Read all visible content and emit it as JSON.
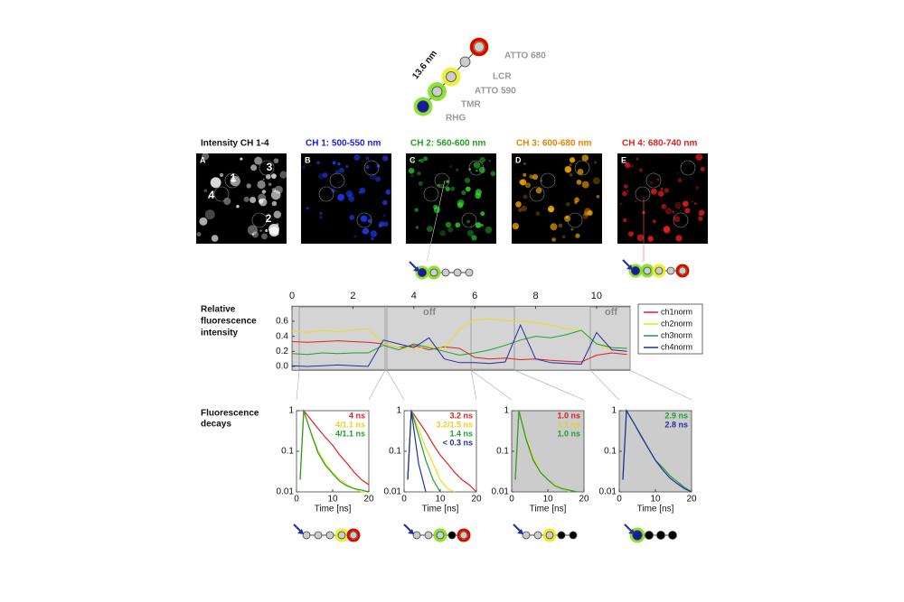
{
  "construct": {
    "length": "13.6 nm",
    "dyes": [
      "ATTO 680",
      "LCR",
      "ATTO 590",
      "TMR",
      "RHG"
    ]
  },
  "images": {
    "titles": [
      "Intensity CH 1-4",
      "CH 1: 500-550 nm",
      "CH 2: 560-600 nm",
      "CH 3: 600-680 nm",
      "CH 4: 680-740 nm"
    ],
    "letters": [
      "A",
      "B",
      "C",
      "D",
      "E"
    ],
    "spots": [
      "1",
      "2",
      "3",
      "4"
    ]
  },
  "trace": {
    "label": [
      "Relative",
      "fluorescence",
      "intensity"
    ],
    "annotations": [
      "off",
      "off"
    ],
    "xlim": [
      0,
      11.1
    ],
    "xticks": [
      0,
      2,
      4,
      6,
      8,
      10
    ],
    "ylim": [
      -0.05,
      0.8
    ],
    "yticks": [
      {
        "value": 0,
        "label": "0.0"
      },
      0.2,
      0.4,
      0.6
    ],
    "x": [
      0,
      0.5,
      1,
      1.5,
      2,
      2.5,
      3,
      3.5,
      4,
      4.5,
      5,
      5.5,
      6,
      6.5,
      7,
      7.5,
      8,
      8.5,
      9,
      9.5,
      10,
      10.5,
      11
    ],
    "series": [
      {
        "name": "ch1norm",
        "color": "#e02020",
        "values": [
          0.33,
          0.32,
          0.33,
          0.34,
          0.33,
          0.32,
          0.3,
          0.25,
          0.28,
          0.22,
          0.26,
          0.24,
          0.12,
          0.1,
          0.11,
          0.09,
          0.1,
          0.08,
          0.07,
          0.06,
          0.15,
          0.18,
          0.16
        ]
      },
      {
        "name": "ch2norm",
        "color": "#e8e020",
        "values": [
          0.47,
          0.45,
          0.48,
          0.46,
          0.49,
          0.5,
          0.3,
          0.25,
          0.22,
          0.28,
          0.24,
          0.5,
          0.62,
          0.63,
          0.61,
          0.6,
          0.58,
          0.55,
          0.5,
          0.48,
          0.3,
          0.22,
          0.2
        ]
      },
      {
        "name": "ch3norm",
        "color": "#20a030",
        "values": [
          0.17,
          0.16,
          0.18,
          0.17,
          0.18,
          0.18,
          0.28,
          0.22,
          0.3,
          0.25,
          0.2,
          0.15,
          0.18,
          0.22,
          0.28,
          0.35,
          0.4,
          0.38,
          0.42,
          0.48,
          0.3,
          0.25,
          0.24
        ]
      },
      {
        "name": "ch4norm",
        "color": "#2030a0",
        "values": [
          0.01,
          0.0,
          0.01,
          0.02,
          0.01,
          0.0,
          0.35,
          0.3,
          0.25,
          0.38,
          0.1,
          0.05,
          0.05,
          0.04,
          0.06,
          0.55,
          0.1,
          0.05,
          0.04,
          0.03,
          0.45,
          0.22,
          0.2
        ]
      }
    ]
  },
  "decays": {
    "label": [
      "Fluorescence",
      "decays"
    ],
    "x_label": "Time [ns]",
    "xlim": [
      0,
      20
    ],
    "xticks": [
      0,
      10,
      20
    ],
    "ylim": [
      0.01,
      1
    ],
    "yticks": [
      1,
      0.1,
      0.01
    ],
    "log_y": true,
    "x": [
      1,
      2,
      4,
      6,
      8,
      10,
      12,
      14,
      16,
      18,
      20
    ],
    "panels": [
      {
        "background": "#ffffff",
        "lifetimes": [
          {
            "text": "4 ns",
            "color": "#e02020"
          },
          {
            "text": "4/1.1 ns",
            "color": "#e8d020"
          },
          {
            "text": "4/1.1 ns",
            "color": "#20a030"
          }
        ],
        "series": [
          {
            "color": "#e02020",
            "values": [
              0.02,
              1,
              0.6,
              0.36,
              0.22,
              0.14,
              0.08,
              0.05,
              0.03,
              0.02,
              0.015
            ]
          },
          {
            "color": "#e8e020",
            "values": [
              0.02,
              1,
              0.3,
              0.1,
              0.05,
              0.03,
              0.02,
              0.015,
              0.012,
              0.01,
              0.01
            ]
          },
          {
            "color": "#20a030",
            "values": [
              0.02,
              1,
              0.28,
              0.09,
              0.045,
              0.028,
              0.018,
              0.014,
              0.012,
              0.011,
              0.01
            ]
          }
        ]
      },
      {
        "background": "#ffffff",
        "lifetimes": [
          {
            "text": "3.2 ns",
            "color": "#e02020"
          },
          {
            "text": "3.2/1.5 ns",
            "color": "#e8d020"
          },
          {
            "text": "1.4 ns",
            "color": "#20a030"
          },
          {
            "text": "< 0.3 ns",
            "color": "#2030a0"
          }
        ],
        "series": [
          {
            "color": "#e02020",
            "values": [
              0.02,
              1,
              0.55,
              0.3,
              0.15,
              0.08,
              0.05,
              0.03,
              0.02,
              0.015,
              0.01
            ]
          },
          {
            "color": "#e8e020",
            "values": [
              0.02,
              1,
              0.35,
              0.12,
              0.05,
              0.02,
              0.012,
              0.01,
              null,
              null,
              null
            ]
          },
          {
            "color": "#20a030",
            "values": [
              0.02,
              1,
              0.25,
              0.06,
              0.02,
              0.01,
              null,
              null,
              null,
              null,
              null
            ]
          },
          {
            "color": "#2030a0",
            "values": [
              0.02,
              1,
              0.05,
              0.01,
              null,
              null,
              null,
              null,
              null,
              null,
              null
            ]
          }
        ]
      },
      {
        "background": "#cccccc",
        "lifetimes": [
          {
            "text": "1.0 ns",
            "color": "#e02020"
          },
          {
            "text": "1.1 ns",
            "color": "#e8d020"
          },
          {
            "text": "1.0 ns",
            "color": "#20a030"
          }
        ],
        "series": [
          {
            "color": "#e02020",
            "values": [
              0.02,
              1,
              0.2,
              0.06,
              0.03,
              0.02,
              0.015,
              0.012,
              0.01,
              null,
              null
            ]
          },
          {
            "color": "#e8e020",
            "values": [
              0.02,
              1,
              0.22,
              0.07,
              0.03,
              0.02,
              0.015,
              0.012,
              0.01,
              null,
              null
            ]
          },
          {
            "color": "#20a030",
            "values": [
              0.02,
              1,
              0.2,
              0.06,
              0.03,
              0.02,
              0.014,
              0.012,
              0.011,
              0.01,
              null
            ]
          }
        ]
      },
      {
        "background": "#cccccc",
        "lifetimes": [
          {
            "text": "2.9 ns",
            "color": "#20a030"
          },
          {
            "text": "2.8 ns",
            "color": "#2030a0"
          }
        ],
        "series": [
          {
            "color": "#20a030",
            "values": [
              0.02,
              1,
              0.5,
              0.25,
              0.12,
              0.06,
              0.04,
              0.025,
              0.018,
              0.013,
              0.01
            ]
          },
          {
            "color": "#2030a0",
            "values": [
              0.02,
              1,
              0.5,
              0.24,
              0.12,
              0.06,
              0.035,
              0.022,
              0.016,
              0.012,
              0.01
            ]
          }
        ]
      }
    ]
  }
}
